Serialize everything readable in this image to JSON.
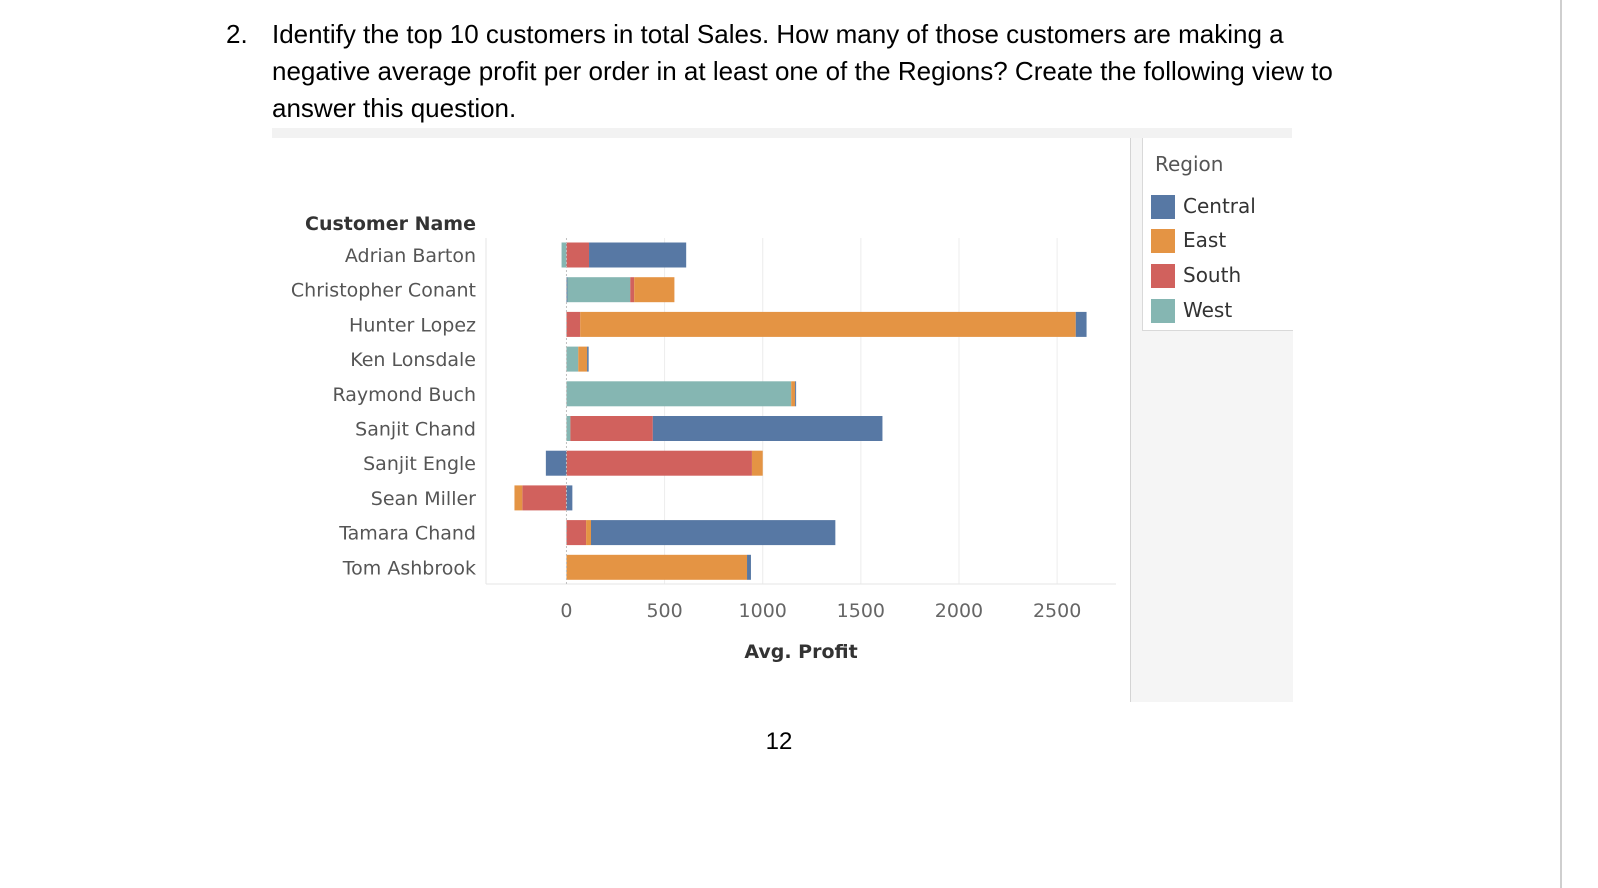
{
  "question": {
    "number": "2.",
    "text": "Identify the top 10 customers in total Sales. How many of those customers are making a negative average profit per order in at least one of the Regions? Create the following view to answer this question."
  },
  "page_number": "12",
  "colors": {
    "Central": "#5778a4",
    "East": "#e49444",
    "South": "#d1615d",
    "West": "#85b6b2"
  },
  "legend": {
    "title": "Region",
    "items": [
      {
        "name": "Central",
        "color": "#5778a4"
      },
      {
        "name": "East",
        "color": "#e49444"
      },
      {
        "name": "South",
        "color": "#d1615d"
      },
      {
        "name": "West",
        "color": "#85b6b2"
      }
    ]
  },
  "chart_data": {
    "type": "bar",
    "orientation": "horizontal",
    "stacked": true,
    "row_header": "Customer Name",
    "xlabel": "Avg. Profit",
    "xlim": [
      -410,
      2800
    ],
    "xticks": [
      0,
      500,
      1000,
      1500,
      2000,
      2500
    ],
    "gridlines": "vertical",
    "legend_position": "right",
    "categories": [
      "Adrian Barton",
      "Christopher Conant",
      "Hunter Lopez",
      "Ken Lonsdale",
      "Raymond Buch",
      "Sanjit Chand",
      "Sanjit Engle",
      "Sean Miller",
      "Tamara Chand",
      "Tom Ashbrook"
    ],
    "rows": [
      [
        {
          "region": "West",
          "value": -25
        },
        {
          "region": "South",
          "value": 115
        },
        {
          "region": "Central",
          "value": 495
        }
      ],
      [
        {
          "region": "Central",
          "value": 5
        },
        {
          "region": "West",
          "value": 320
        },
        {
          "region": "South",
          "value": 20
        },
        {
          "region": "East",
          "value": 205
        }
      ],
      [
        {
          "region": "South",
          "value": 70
        },
        {
          "region": "East",
          "value": 2525
        },
        {
          "region": "Central",
          "value": 55
        }
      ],
      [
        {
          "region": "West",
          "value": 60
        },
        {
          "region": "East",
          "value": 45
        },
        {
          "region": "Central",
          "value": 8
        }
      ],
      [
        {
          "region": "West",
          "value": 1145
        },
        {
          "region": "East",
          "value": 20
        },
        {
          "region": "Central",
          "value": 5
        }
      ],
      [
        {
          "region": "West",
          "value": 20
        },
        {
          "region": "South",
          "value": 420
        },
        {
          "region": "Central",
          "value": 1170
        }
      ],
      [
        {
          "region": "Central",
          "value": -105
        },
        {
          "region": "South",
          "value": 945
        },
        {
          "region": "East",
          "value": 55
        }
      ],
      [
        {
          "region": "South",
          "value": -225
        },
        {
          "region": "East",
          "value": -40
        },
        {
          "region": "Central",
          "value": 30
        }
      ],
      [
        {
          "region": "South",
          "value": 100
        },
        {
          "region": "East",
          "value": 25
        },
        {
          "region": "Central",
          "value": 1245
        }
      ],
      [
        {
          "region": "East",
          "value": 920
        },
        {
          "region": "Central",
          "value": 20
        }
      ]
    ]
  }
}
